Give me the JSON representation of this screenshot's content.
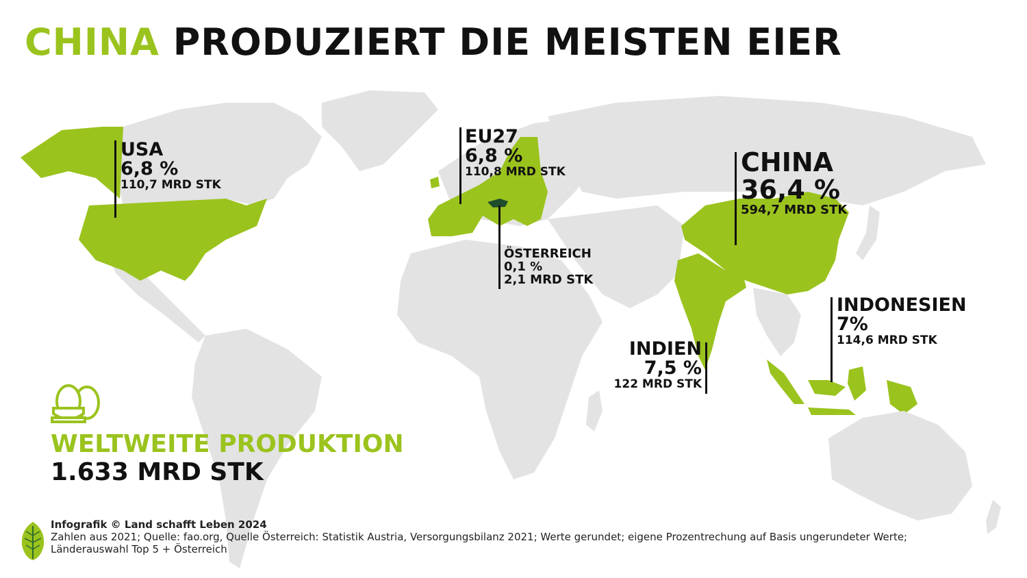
{
  "title": {
    "accent": "CHINA",
    "rest": "PRODUZIERT DIE MEISTEN EIER"
  },
  "colors": {
    "highlight": "#9bc31e",
    "land": "#e3e3e3",
    "austria": "#1f4d2c",
    "text": "#111111"
  },
  "countries": {
    "usa": {
      "name": "USA",
      "pct": "6,8 %",
      "amount": "110,7 MRD STK"
    },
    "eu27": {
      "name": "EU27",
      "pct": "6,8 %",
      "amount": "110,8 MRD STK"
    },
    "austria": {
      "name": "ÖSTERREICH",
      "pct": "0,1 %",
      "amount": "2,1 MRD STK"
    },
    "china": {
      "name": "CHINA",
      "pct": "36,4 %",
      "amount": "594,7 MRD STK"
    },
    "india": {
      "name": "INDIEN",
      "pct": "7,5 %",
      "amount": "122 MRD STK"
    },
    "indonesia": {
      "name": "INDONESIEN",
      "pct": "7%",
      "amount": "114,6 MRD STK"
    }
  },
  "world": {
    "label": "WELTWEITE PRODUKTION",
    "value": "1.633 MRD STK"
  },
  "icons": {
    "eggs": "eggs-icon",
    "logo": "leaf-logo-icon"
  },
  "footer": {
    "credit": "Infografik © Land schafft Leben 2024",
    "source": "Zahlen aus 2021; Quelle: fao.org, Quelle Österreich: Statistik Austria, Versorgungsbilanz 2021; Werte gerundet; eigene Prozentrechung auf Basis ungerundeter Werte; Länderauswahl Top 5 + Österreich"
  }
}
